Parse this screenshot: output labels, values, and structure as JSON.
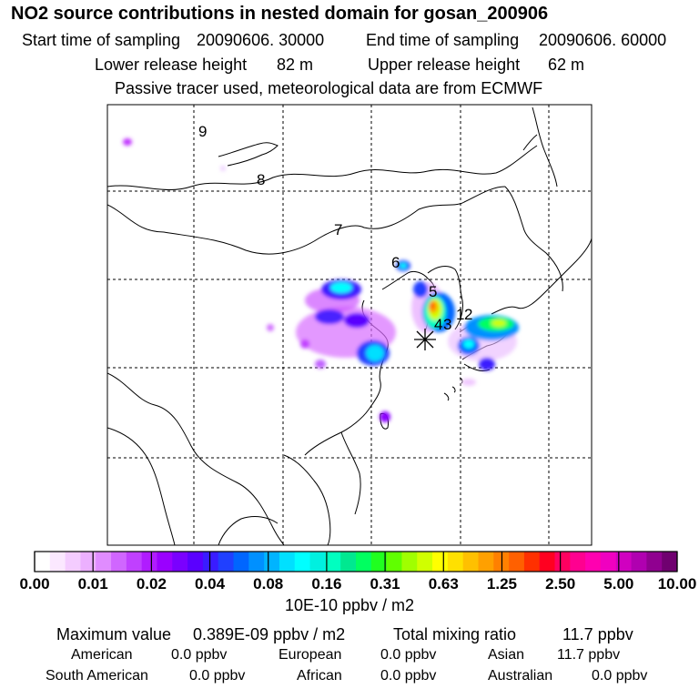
{
  "title": "NO2 source contributions in nested domain for gosan_200906",
  "header": {
    "start_label": "Start time of sampling",
    "start_value": "20090606. 30000",
    "end_label": "End time of sampling",
    "end_value": "20090606. 60000",
    "lower_label": "Lower release height",
    "lower_value": "82 m",
    "upper_label": "Upper release height",
    "upper_value": "62 m",
    "note": "Passive tracer used, meteorological data are from ECMWF"
  },
  "map": {
    "trajectory_labels": [
      "9",
      "8",
      "7",
      "6",
      "5",
      "4",
      "3",
      "2",
      "1"
    ],
    "receptor_marker": "star-marker",
    "grid": true
  },
  "colorbar": {
    "tick_labels": [
      "0.00",
      "0.01",
      "0.02",
      "0.04",
      "0.08",
      "0.16",
      "0.31",
      "0.63",
      "1.25",
      "2.50",
      "5.00",
      "10.00"
    ],
    "unit": "10E-10 ppbv / m2",
    "colors": [
      "#ffffff",
      "#fbe8ff",
      "#f4ccff",
      "#ecb0ff",
      "#e08cff",
      "#d066ff",
      "#c040ff",
      "#b01cff",
      "#9a00ff",
      "#7a00ff",
      "#5a00ff",
      "#3a1cff",
      "#2040ff",
      "#0066ff",
      "#0090ff",
      "#00b4ff",
      "#00e0ff",
      "#00ffff",
      "#00f0e0",
      "#00ffc0",
      "#00e890",
      "#00ff60",
      "#20ff20",
      "#60ff00",
      "#a0ff00",
      "#d0ff00",
      "#ffff00",
      "#ffe000",
      "#ffc000",
      "#ffa000",
      "#ff8000",
      "#ff6000",
      "#ff3000",
      "#ff0020",
      "#ff0060",
      "#ff0090",
      "#ff00b0",
      "#f000c0",
      "#d000c0",
      "#b000b0",
      "#900090",
      "#700070"
    ]
  },
  "stats": {
    "max_label": "Maximum value",
    "max_value": "0.389E-09 ppbv / m2",
    "total_label": "Total mixing ratio",
    "total_value": "11.7 ppbv"
  },
  "regions": [
    {
      "name": "American",
      "value": "0.0 ppbv"
    },
    {
      "name": "European",
      "value": "0.0 ppbv"
    },
    {
      "name": "Asian",
      "value": "11.7 ppbv"
    },
    {
      "name": "South American",
      "value": "0.0 ppbv"
    },
    {
      "name": "African",
      "value": "0.0 ppbv"
    },
    {
      "name": "Australian",
      "value": "0.0 ppbv"
    }
  ]
}
